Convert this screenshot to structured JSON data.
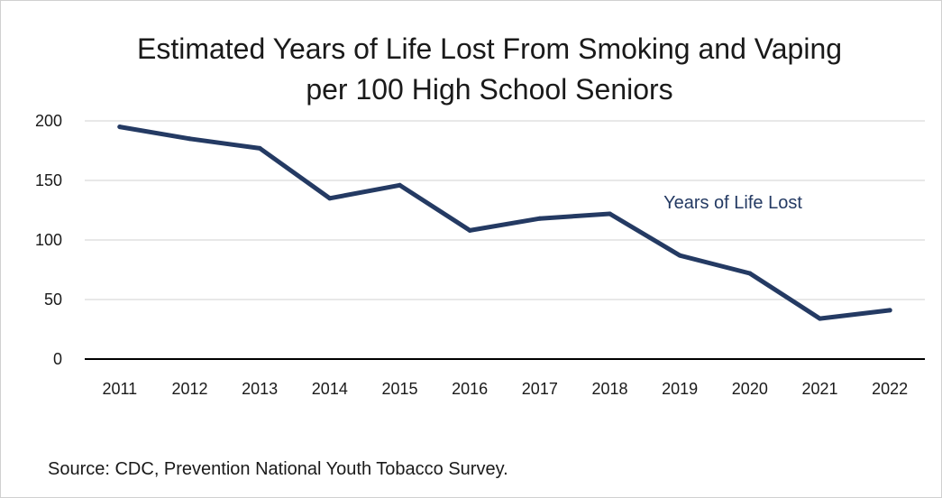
{
  "chart_data": {
    "type": "line",
    "title_lines": [
      "Estimated Years of Life Lost From Smoking and Vaping",
      "per 100 High School Seniors"
    ],
    "x": [
      "2011",
      "2012",
      "2013",
      "2014",
      "2015",
      "2016",
      "2017",
      "2018",
      "2019",
      "2020",
      "2021",
      "2022"
    ],
    "series": [
      {
        "name": "Years of Life Lost",
        "values": [
          195,
          185,
          177,
          135,
          146,
          108,
          118,
          122,
          87,
          72,
          34,
          41
        ]
      }
    ],
    "y_ticks": [
      0,
      50,
      100,
      150,
      200
    ],
    "ylim": [
      0,
      200
    ],
    "grid": true,
    "line_color": "#243a63",
    "gridline_color": "#d9d9d9",
    "axis_color": "#000000"
  },
  "source_note": "Source: CDC, Prevention National Youth Tobacco Survey."
}
